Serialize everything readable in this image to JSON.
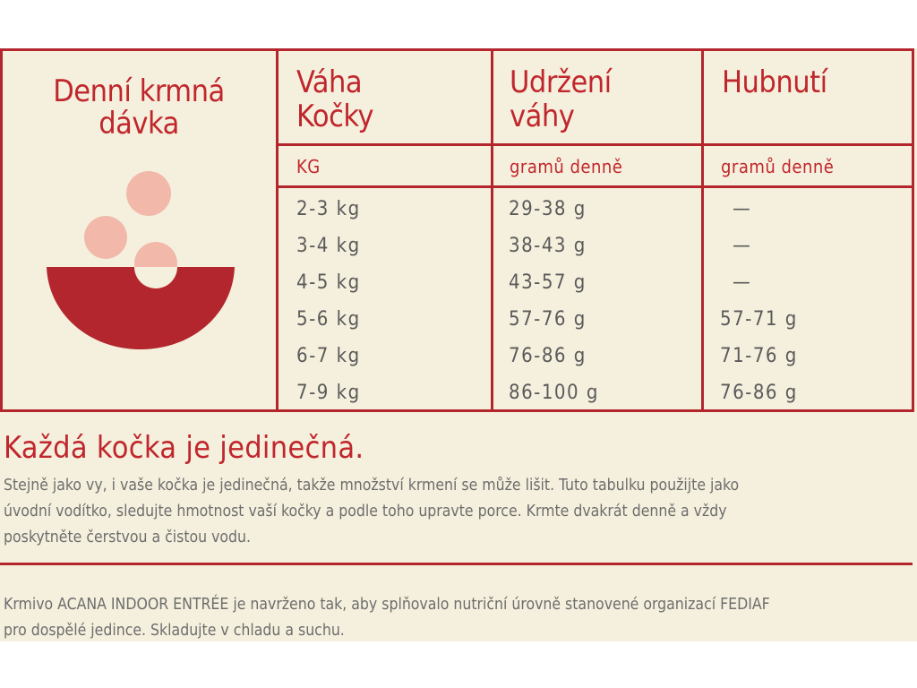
{
  "daily_ration": {
    "title_line1": "Denní krmná",
    "title_line2": "dávka"
  },
  "table": {
    "headers": {
      "weight_line1": "Váha",
      "weight_line2": "Kočky",
      "maintain_line1": "Udržení",
      "maintain_line2": "váhy",
      "loss": "Hubnutí"
    },
    "units": {
      "weight": "KG",
      "maintain": "gramů denně",
      "loss": "gramů denně"
    },
    "rows": [
      {
        "weight": "2-3 kg",
        "maintain": "29-38 g",
        "loss": "—"
      },
      {
        "weight": "3-4 kg",
        "maintain": "38-43 g",
        "loss": "—"
      },
      {
        "weight": "4-5 kg",
        "maintain": "43-57 g",
        "loss": "—"
      },
      {
        "weight": "5-6 kg",
        "maintain": "57-76 g",
        "loss": "57-71 g"
      },
      {
        "weight": "6-7 kg",
        "maintain": "76-86 g",
        "loss": "71-76 g"
      },
      {
        "weight": "7-9 kg",
        "maintain": "86-100 g",
        "loss": "76-86 g"
      }
    ]
  },
  "headline": "Každá kočka je jedinečná.",
  "paragraph1": {
    "line1": "Stejně jako vy, i vaše kočka je jedinečná, takže množství krmení se může lišit. Tuto tabulku použijte jako",
    "line2": "úvodní vodítko, sledujte hmotnost vaší kočky a podle toho upravte porce. Krmte dvakrát denně a vždy",
    "line3": "poskytněte čerstvou a čistou vodu."
  },
  "paragraph2": {
    "line1": "Krmivo ACANA INDOOR ENTRÉE je navrženo tak, aby splňovalo nutriční úrovně stanovené organizací FEDIAF",
    "line2": "pro dospělé jedince. Skladujte v chladu a suchu."
  },
  "colors": {
    "accent": "#b3262d",
    "background": "#f5f0dd",
    "text": "#5a5a5a",
    "pellet": "#f2b9ab"
  },
  "icons": {
    "bowl": "food-bowl-icon"
  }
}
